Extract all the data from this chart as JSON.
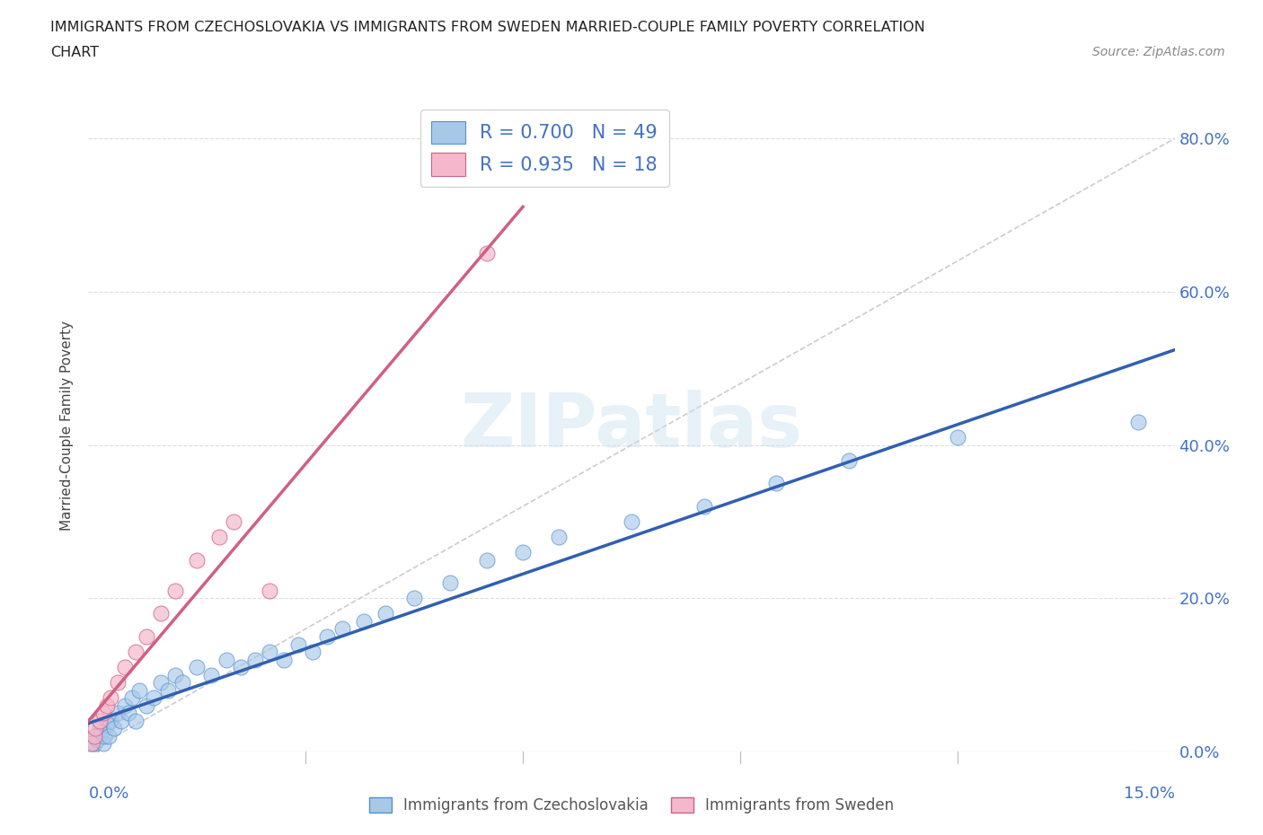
{
  "title_line1": "IMMIGRANTS FROM CZECHOSLOVAKIA VS IMMIGRANTS FROM SWEDEN MARRIED-COUPLE FAMILY POVERTY CORRELATION",
  "title_line2": "CHART",
  "source_text": "Source: ZipAtlas.com",
  "ylabel": "Married-Couple Family Poverty",
  "legend_label_czech": "Immigrants from Czechoslovakia",
  "legend_label_sweden": "Immigrants from Sweden",
  "R_czech": 0.7,
  "R_sweden": 0.935,
  "N_czech": 49,
  "N_sweden": 18,
  "color_czech_fill": "#a8c8e8",
  "color_czech_edge": "#5590d0",
  "color_sweden_fill": "#f4b8cc",
  "color_sweden_edge": "#d06080",
  "color_czech_line": "#3060b0",
  "color_sweden_line": "#d06080",
  "color_ref_line": "#cccccc",
  "color_axis_labels": "#4472c4",
  "color_grid": "#dddddd",
  "xmin": 0.0,
  "xmax": 15.0,
  "ymin": 0.0,
  "ymax": 85.0,
  "yticks": [
    0,
    20,
    40,
    60,
    80
  ],
  "ytick_labels": [
    "0.0%",
    "20.0%",
    "40.0%",
    "60.0%",
    "80.0%"
  ],
  "watermark": "ZIPatlas",
  "czech_x": [
    0.05,
    0.08,
    0.1,
    0.12,
    0.15,
    0.18,
    0.2,
    0.22,
    0.25,
    0.28,
    0.3,
    0.35,
    0.4,
    0.45,
    0.5,
    0.55,
    0.6,
    0.65,
    0.7,
    0.8,
    0.9,
    1.0,
    1.1,
    1.2,
    1.3,
    1.5,
    1.7,
    1.9,
    2.1,
    2.3,
    2.5,
    2.7,
    2.9,
    3.1,
    3.3,
    3.5,
    3.8,
    4.1,
    4.5,
    5.0,
    5.5,
    6.0,
    6.5,
    7.5,
    8.5,
    9.5,
    10.5,
    12.0,
    14.5
  ],
  "czech_y": [
    0.5,
    1.0,
    2.0,
    1.5,
    3.0,
    2.5,
    1.0,
    2.0,
    3.5,
    2.0,
    4.0,
    3.0,
    5.0,
    4.0,
    6.0,
    5.0,
    7.0,
    4.0,
    8.0,
    6.0,
    7.0,
    9.0,
    8.0,
    10.0,
    9.0,
    11.0,
    10.0,
    12.0,
    11.0,
    12.0,
    13.0,
    12.0,
    14.0,
    13.0,
    15.0,
    16.0,
    17.0,
    18.0,
    20.0,
    22.0,
    25.0,
    26.0,
    28.0,
    30.0,
    32.0,
    35.0,
    38.0,
    41.0,
    43.0
  ],
  "sweden_x": [
    0.05,
    0.08,
    0.1,
    0.15,
    0.2,
    0.25,
    0.3,
    0.4,
    0.5,
    0.65,
    0.8,
    1.0,
    1.2,
    1.5,
    1.8,
    2.0,
    5.5,
    2.5
  ],
  "sweden_y": [
    1.0,
    2.0,
    3.0,
    4.0,
    5.0,
    6.0,
    7.0,
    9.0,
    11.0,
    13.0,
    15.0,
    18.0,
    21.0,
    25.0,
    28.0,
    30.0,
    65.0,
    21.0
  ],
  "ref_line_x": [
    0,
    15
  ],
  "ref_line_y": [
    0,
    80
  ]
}
